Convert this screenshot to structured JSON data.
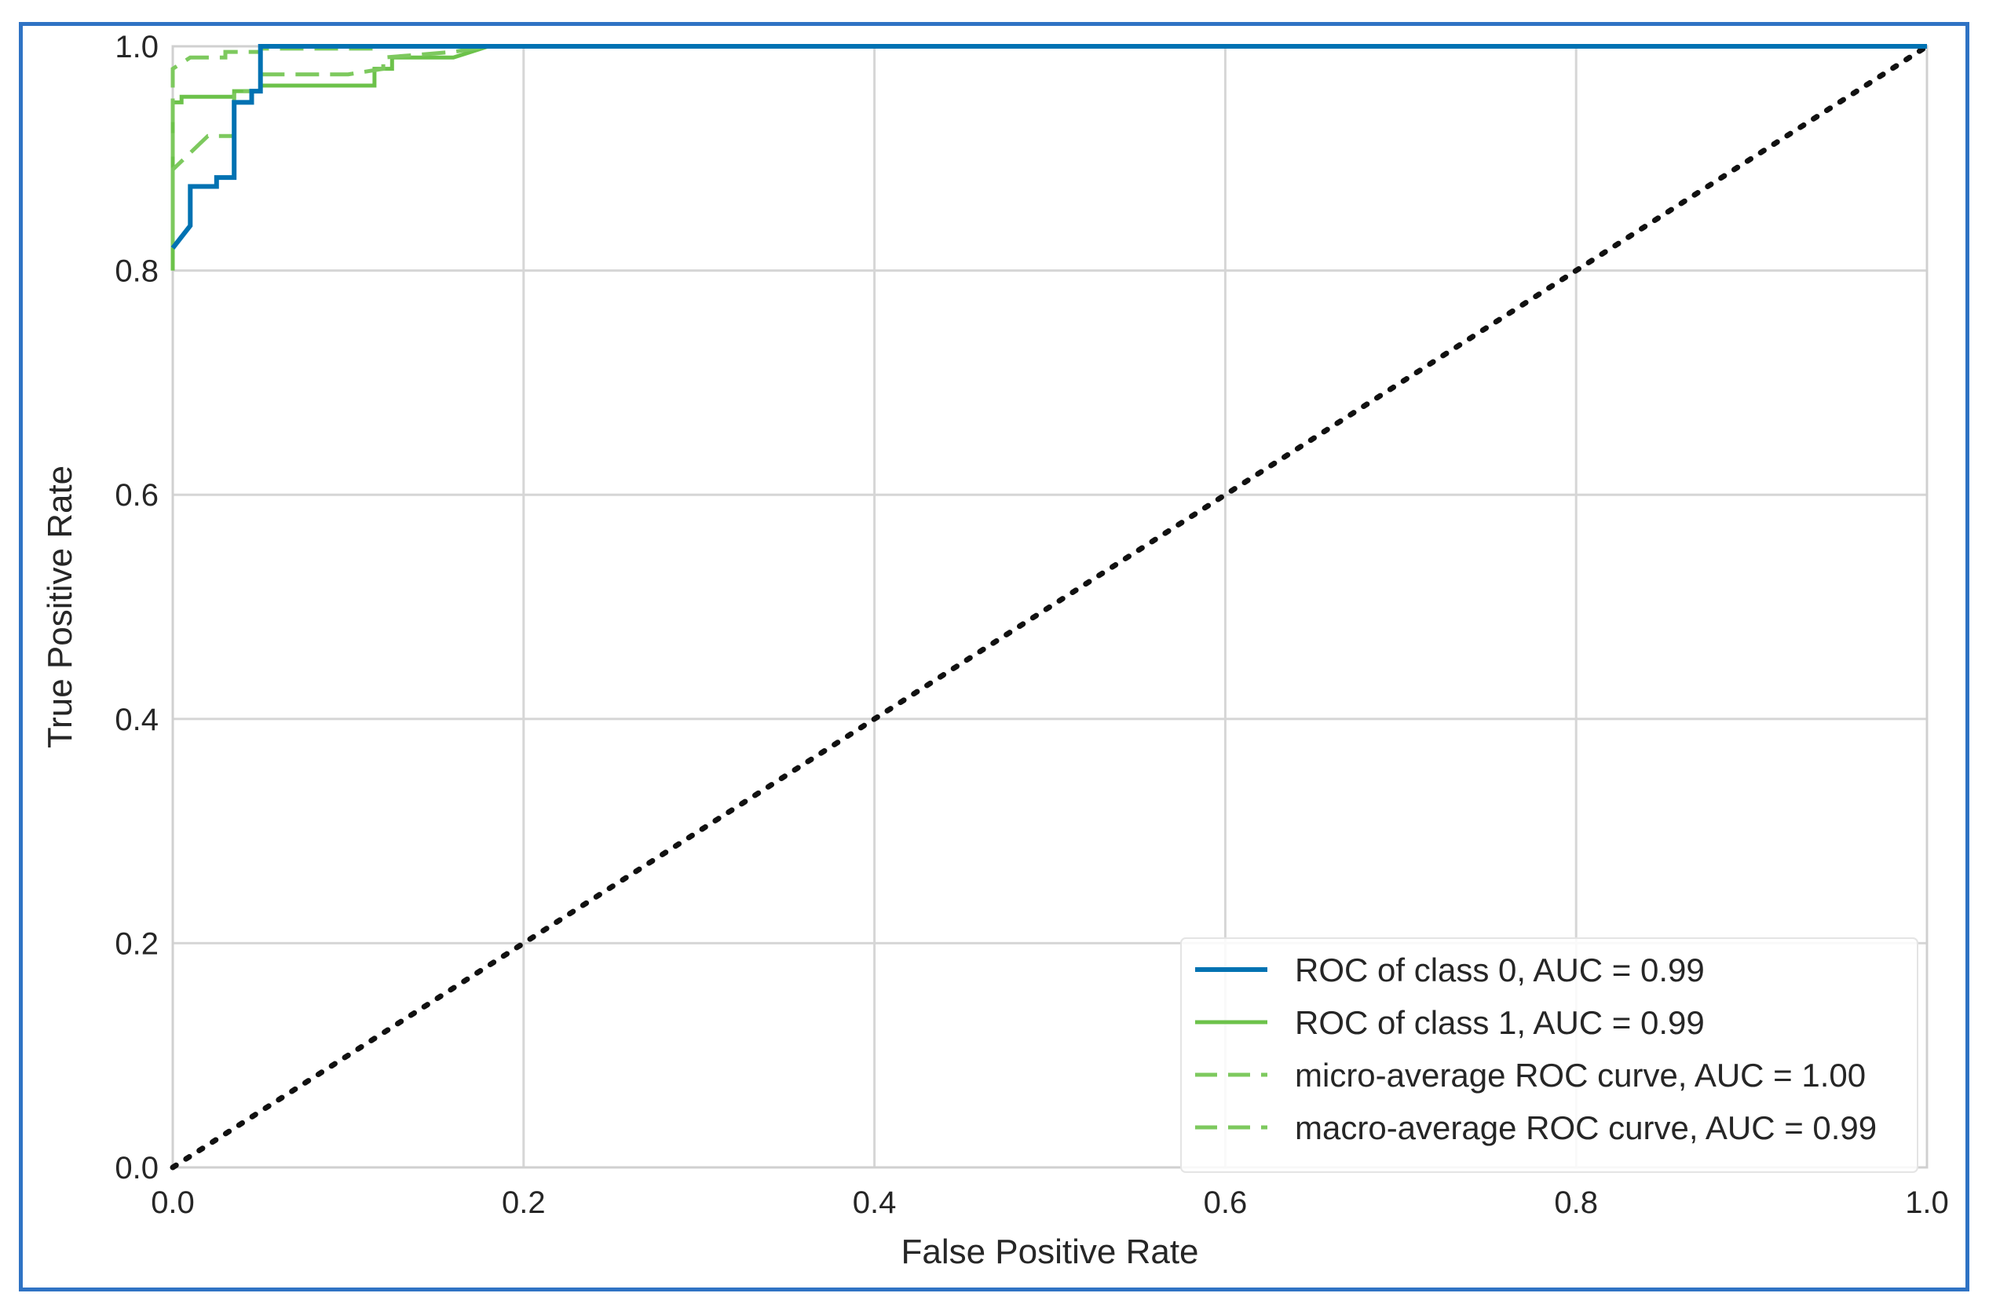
{
  "chart_data": {
    "type": "line",
    "title": "",
    "xlabel": "False Positive Rate",
    "ylabel": "True Positive Rate",
    "xlim": [
      0.0,
      1.0
    ],
    "ylim": [
      0.0,
      1.0
    ],
    "xticks": [
      "0.0",
      "0.2",
      "0.4",
      "0.6",
      "0.8",
      "1.0"
    ],
    "yticks": [
      "0.0",
      "0.2",
      "0.4",
      "0.6",
      "0.8",
      "1.0"
    ],
    "grid": true,
    "legend_position": "lower-right",
    "series": [
      {
        "name": "ROC of class 0, AUC = 0.99",
        "color": "#0072b2",
        "dash": "solid",
        "x": [
          0.0,
          0.0,
          0.01,
          0.01,
          0.025,
          0.025,
          0.035,
          0.035,
          0.045,
          0.045,
          0.05,
          0.05,
          1.0
        ],
        "y": [
          0.82,
          0.82,
          0.84,
          0.875,
          0.875,
          0.883,
          0.883,
          0.95,
          0.95,
          0.96,
          0.96,
          1.0,
          1.0
        ]
      },
      {
        "name": "ROC of class 1, AUC = 0.99",
        "color": "#6cc24a",
        "dash": "solid",
        "x": [
          0.0,
          0.0,
          0.005,
          0.005,
          0.035,
          0.035,
          0.05,
          0.05,
          0.115,
          0.115,
          0.125,
          0.125,
          0.16,
          0.18,
          1.0
        ],
        "y": [
          0.8,
          0.95,
          0.95,
          0.955,
          0.955,
          0.96,
          0.96,
          0.965,
          0.965,
          0.98,
          0.98,
          0.99,
          0.99,
          1.0,
          1.0
        ]
      },
      {
        "name": "micro-average ROC curve, AUC = 1.00",
        "color": "#7dc95e",
        "dash": "dashed",
        "x": [
          0.0,
          0.0,
          0.01,
          0.03,
          0.03,
          0.05,
          0.05,
          0.12,
          0.12,
          0.14,
          1.0
        ],
        "y": [
          0.84,
          0.98,
          0.99,
          0.99,
          0.995,
          0.995,
          0.998,
          0.998,
          1.0,
          1.0,
          1.0
        ],
        "auc_label": "AUC = 1.00"
      },
      {
        "name": "macro-average ROC curve, AUC = 0.99",
        "color": "#7dc95e",
        "dash": "dashed",
        "x": [
          0.0,
          0.0,
          0.01,
          0.02,
          0.035,
          0.035,
          0.05,
          0.05,
          0.1,
          0.12,
          0.12,
          0.16,
          0.18,
          1.0
        ],
        "y": [
          0.82,
          0.89,
          0.905,
          0.92,
          0.92,
          0.96,
          0.96,
          0.975,
          0.975,
          0.98,
          0.99,
          0.995,
          1.0,
          1.0
        ]
      },
      {
        "name": "",
        "color": "#111111",
        "dash": "dotted",
        "x": [
          0.0,
          1.0
        ],
        "y": [
          0.0,
          1.0
        ]
      }
    ]
  }
}
